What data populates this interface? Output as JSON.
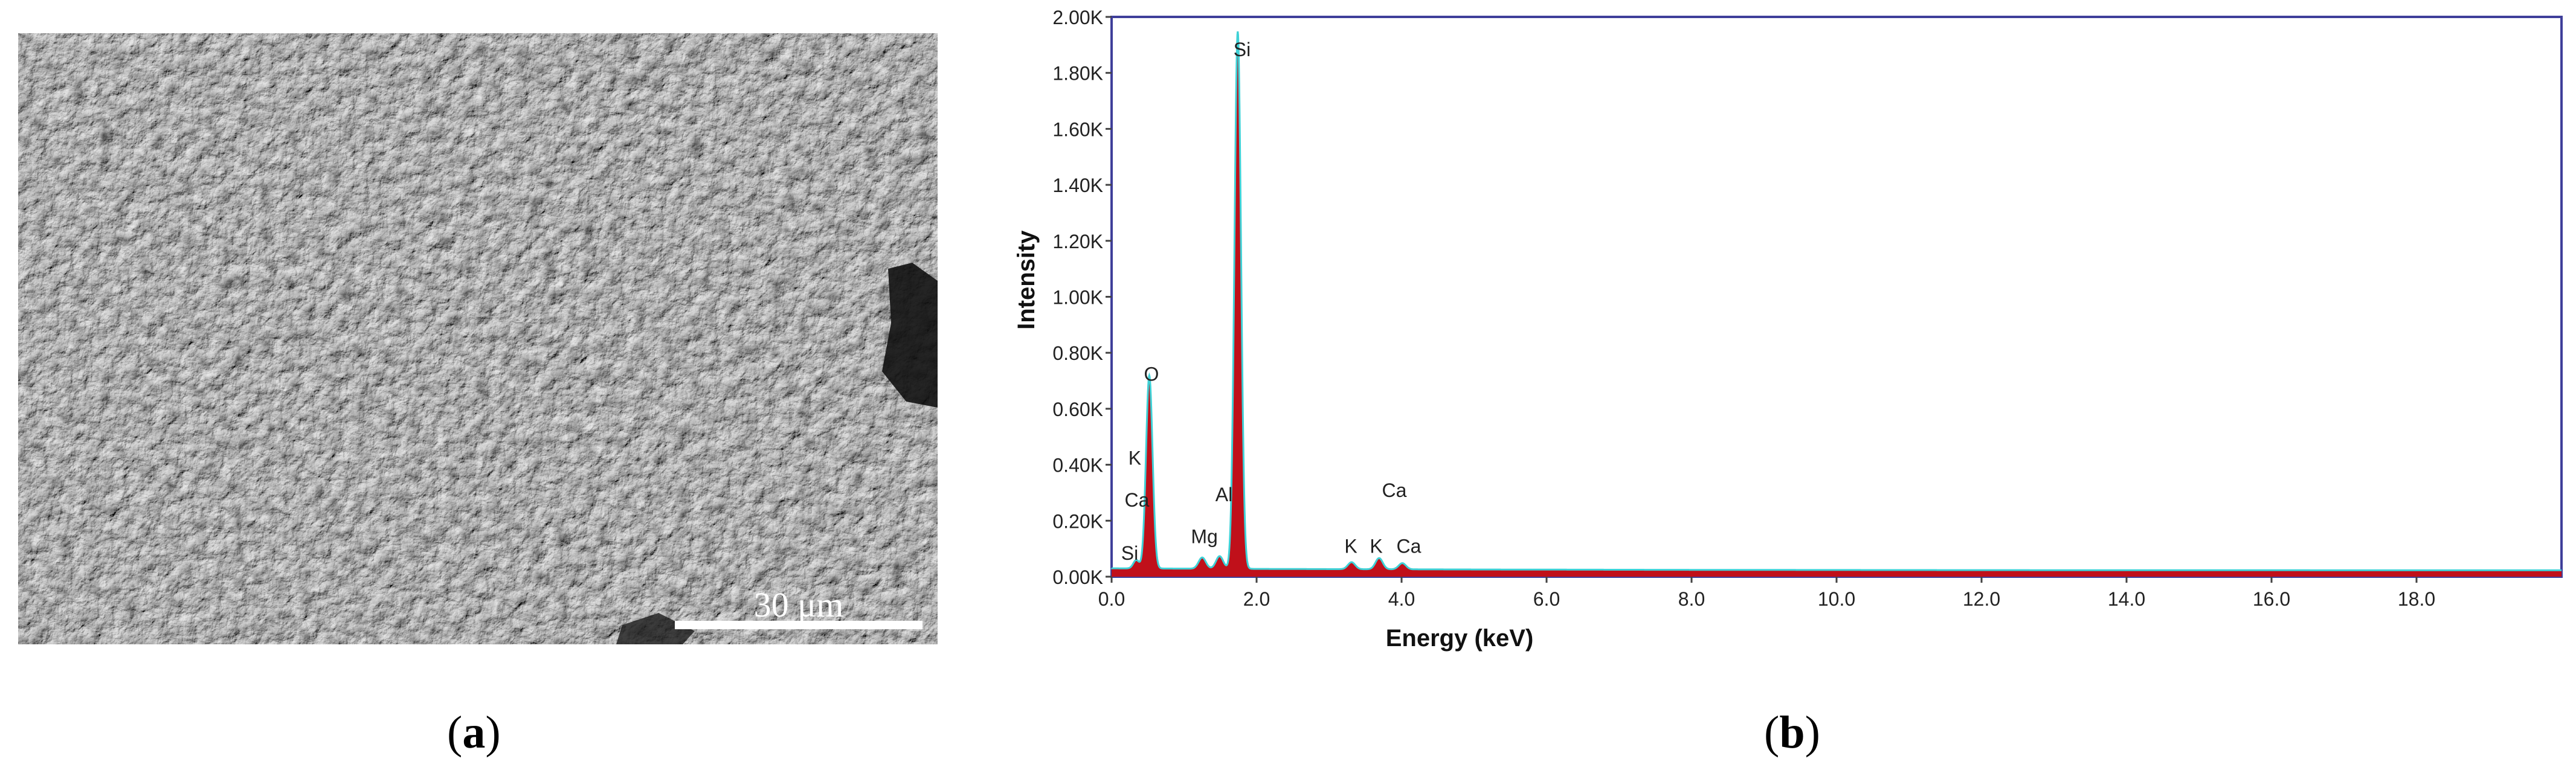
{
  "panel_a": {
    "caption_open": "(",
    "caption_letter": "a",
    "caption_close": ")",
    "scale_bar_label": "30 μm"
  },
  "panel_b": {
    "caption_open": "(",
    "caption_letter": "b",
    "caption_close": ")"
  },
  "colors": {
    "spectrum_line": "#3fd1d6",
    "spectrum_fill": "#c0101a",
    "frame": "#3f3f9a"
  },
  "chart_data": {
    "type": "line",
    "title": "",
    "xlabel": "Energy (keV)",
    "ylabel": "Intensity",
    "xlim": [
      0,
      20
    ],
    "ylim": [
      0,
      2000
    ],
    "x_ticks": [
      0,
      2,
      4,
      6,
      8,
      10,
      12,
      14,
      16,
      18
    ],
    "x_tick_labels": [
      "0.0",
      "2.0",
      "4.0",
      "6.0",
      "8.0",
      "10.0",
      "12.0",
      "14.0",
      "16.0",
      "18.0"
    ],
    "y_ticks": [
      0,
      200,
      400,
      600,
      800,
      1000,
      1200,
      1400,
      1600,
      1800,
      2000
    ],
    "y_tick_labels": [
      "0.00K",
      "0.20K",
      "0.40K",
      "0.60K",
      "0.80K",
      "1.00K",
      "1.20K",
      "1.40K",
      "1.60K",
      "1.80K",
      "2.00K"
    ],
    "grid": false,
    "peaks": [
      {
        "energy": 0.52,
        "intensity": 690,
        "width": 0.045
      },
      {
        "energy": 0.34,
        "intensity": 30,
        "width": 0.04
      },
      {
        "energy": 1.25,
        "intensity": 40,
        "width": 0.05
      },
      {
        "energy": 1.49,
        "intensity": 45,
        "width": 0.05
      },
      {
        "energy": 1.74,
        "intensity": 1920,
        "width": 0.045
      },
      {
        "energy": 3.31,
        "intensity": 25,
        "width": 0.05
      },
      {
        "energy": 3.69,
        "intensity": 40,
        "width": 0.05
      },
      {
        "energy": 4.01,
        "intensity": 22,
        "width": 0.05
      }
    ],
    "background": 30,
    "annotations": [
      {
        "text": "O",
        "x": 0.55,
        "y": 700
      },
      {
        "text": "Si",
        "x": 1.8,
        "y": 1860
      },
      {
        "text": "K",
        "x": 0.32,
        "y": 400
      },
      {
        "text": "Ca",
        "x": 0.35,
        "y": 250
      },
      {
        "text": "Si",
        "x": 0.25,
        "y": 60
      },
      {
        "text": "Mg",
        "x": 1.28,
        "y": 120
      },
      {
        "text": "Al",
        "x": 1.55,
        "y": 270
      },
      {
        "text": "K",
        "x": 3.3,
        "y": 85
      },
      {
        "text": "K",
        "x": 3.65,
        "y": 85
      },
      {
        "text": "Ca",
        "x": 3.9,
        "y": 285
      },
      {
        "text": "Ca",
        "x": 4.1,
        "y": 85
      }
    ]
  }
}
